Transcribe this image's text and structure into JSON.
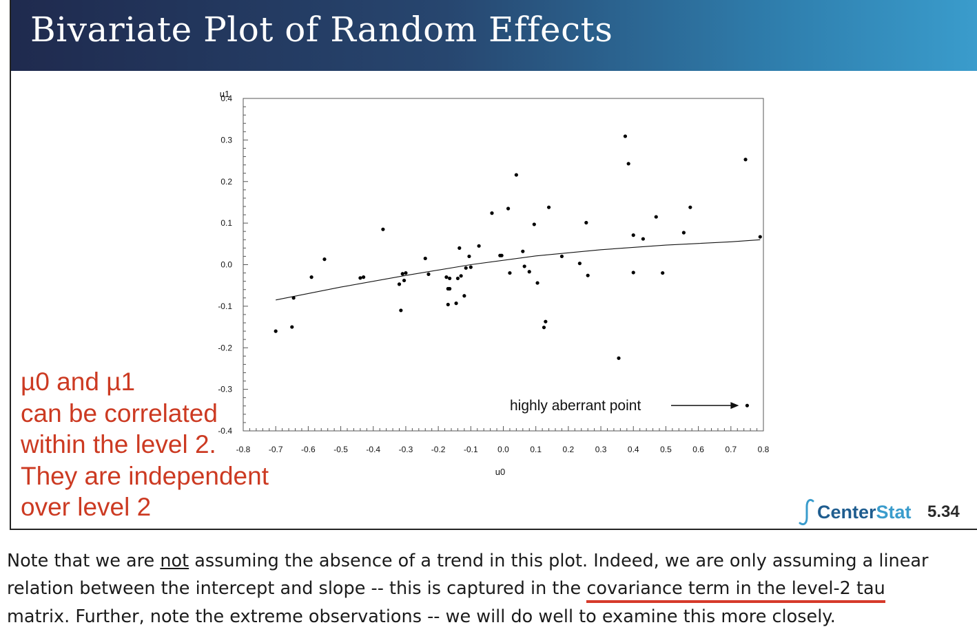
{
  "slide": {
    "title": "Bivariate Plot of Random Effects",
    "slide_number": "5.34"
  },
  "logo": {
    "part1": "Center",
    "part2": "Stat",
    "colors": {
      "center": "#1f5d8f",
      "stat": "#3a9ccc"
    }
  },
  "annotation": {
    "lines": [
      "µ0 and µ1",
      "can be correlated",
      "within the level 2.",
      "They are independent",
      "over level 2"
    ],
    "color": "#cc3a22"
  },
  "note": {
    "line1_pre": "Note that we are ",
    "line1_underlined": "not",
    "line1_post": " assuming the absence of a trend in this plot. Indeed, we are only assuming a linear",
    "line2_pre": "relation between the intercept and slope -- this is captured in the ",
    "line2_highlight": "covariance term in the level-2 tau",
    "line3": "matrix. Further, note the extreme observations -- we will do well to examine this more closely."
  },
  "chart_data": {
    "type": "scatter",
    "title": "",
    "xlabel": "u0",
    "ylabel": "u1",
    "xlim": [
      -0.8,
      0.8
    ],
    "ylim": [
      -0.4,
      0.4
    ],
    "x_ticks": [
      "-0.8",
      "-0.7",
      "-0.6",
      "-0.5",
      "-0.4",
      "-0.3",
      "-0.2",
      "-0.1",
      "0.0",
      "0.1",
      "0.2",
      "0.3",
      "0.4",
      "0.5",
      "0.6",
      "0.7",
      "0.8"
    ],
    "x_tick_values": [
      -0.8,
      -0.7,
      -0.6,
      -0.5,
      -0.4,
      -0.3,
      -0.2,
      -0.1,
      0.0,
      0.1,
      0.2,
      0.3,
      0.4,
      0.5,
      0.6,
      0.7,
      0.8
    ],
    "y_ticks": [
      "-0.4",
      "-0.3",
      "-0.2",
      "-0.1",
      "0.0",
      "0.1",
      "0.2",
      "0.3",
      "0.4"
    ],
    "y_tick_values": [
      -0.4,
      -0.3,
      -0.2,
      -0.1,
      0.0,
      0.1,
      0.2,
      0.3,
      0.4
    ],
    "grid": false,
    "points": [
      [
        -0.7,
        -0.16
      ],
      [
        -0.65,
        -0.15
      ],
      [
        -0.645,
        -0.08
      ],
      [
        -0.59,
        -0.03
      ],
      [
        -0.55,
        0.013
      ],
      [
        -0.44,
        -0.032
      ],
      [
        -0.43,
        -0.03
      ],
      [
        -0.37,
        0.085
      ],
      [
        -0.32,
        -0.047
      ],
      [
        -0.315,
        -0.11
      ],
      [
        -0.31,
        -0.022
      ],
      [
        -0.305,
        -0.038
      ],
      [
        -0.3,
        -0.02
      ],
      [
        -0.24,
        0.015
      ],
      [
        -0.23,
        -0.023
      ],
      [
        -0.175,
        -0.03
      ],
      [
        -0.17,
        -0.058
      ],
      [
        -0.17,
        -0.096
      ],
      [
        -0.165,
        -0.058
      ],
      [
        -0.165,
        -0.033
      ],
      [
        -0.145,
        -0.093
      ],
      [
        -0.14,
        -0.033
      ],
      [
        -0.135,
        0.04
      ],
      [
        -0.13,
        -0.027
      ],
      [
        -0.12,
        -0.075
      ],
      [
        -0.115,
        -0.008
      ],
      [
        -0.105,
        0.02
      ],
      [
        -0.1,
        -0.006
      ],
      [
        -0.075,
        0.045
      ],
      [
        -0.035,
        0.124
      ],
      [
        -0.01,
        0.022
      ],
      [
        -0.005,
        0.022
      ],
      [
        0.015,
        0.135
      ],
      [
        0.02,
        -0.02
      ],
      [
        0.04,
        0.216
      ],
      [
        0.06,
        0.032
      ],
      [
        0.065,
        -0.004
      ],
      [
        0.08,
        -0.017
      ],
      [
        0.095,
        0.097
      ],
      [
        0.105,
        -0.044
      ],
      [
        0.125,
        -0.151
      ],
      [
        0.13,
        -0.137
      ],
      [
        0.14,
        0.138
      ],
      [
        0.18,
        0.02
      ],
      [
        0.235,
        0.003
      ],
      [
        0.255,
        0.101
      ],
      [
        0.26,
        -0.026
      ],
      [
        0.355,
        -0.225
      ],
      [
        0.375,
        0.309
      ],
      [
        0.385,
        0.243
      ],
      [
        0.4,
        0.071
      ],
      [
        0.4,
        -0.019
      ],
      [
        0.43,
        0.062
      ],
      [
        0.47,
        0.115
      ],
      [
        0.49,
        -0.02
      ],
      [
        0.555,
        0.077
      ],
      [
        0.575,
        0.138
      ],
      [
        0.745,
        0.253
      ],
      [
        0.75,
        -0.339
      ],
      [
        0.79,
        0.067
      ]
    ],
    "trend_line": [
      [
        -0.7,
        -0.085
      ],
      [
        -0.5,
        -0.054
      ],
      [
        -0.3,
        -0.026
      ],
      [
        -0.1,
        0.0
      ],
      [
        0.1,
        0.021
      ],
      [
        0.3,
        0.036
      ],
      [
        0.5,
        0.047
      ],
      [
        0.7,
        0.055
      ],
      [
        0.79,
        0.06
      ]
    ],
    "annotations": [
      {
        "text": "highly aberrant point",
        "points_to": [
          0.75,
          -0.339
        ]
      }
    ]
  }
}
